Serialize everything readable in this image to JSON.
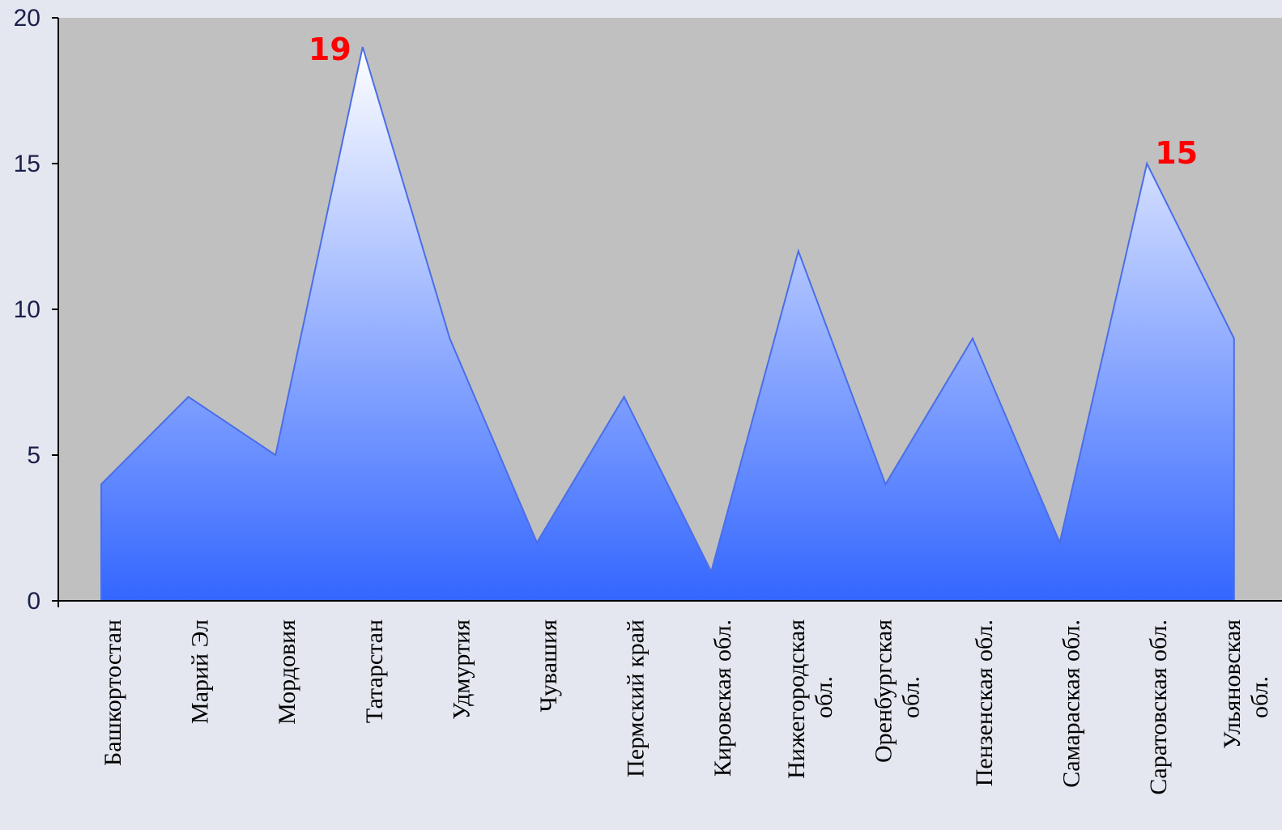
{
  "chart_data": {
    "type": "area",
    "categories": [
      "Башкортостан",
      "Марий Эл",
      "Мордовия",
      "Татарстан",
      "Удмуртия",
      "Чувашия",
      "Пермский край",
      "Кировская обл.",
      "Нижегородская обл.",
      "Оренбургская обл.",
      "Пензенская обл.",
      "Самараская обл.",
      "Саратовская обл.",
      "Ульяновская обл."
    ],
    "category_lines": [
      [
        "Башкортостан"
      ],
      [
        "Марий Эл"
      ],
      [
        "Мордовия"
      ],
      [
        "Татарстан"
      ],
      [
        "Удмуртия"
      ],
      [
        "Чувашия"
      ],
      [
        "Пермский край"
      ],
      [
        "Кировская обл."
      ],
      [
        "Нижегородская",
        "обл."
      ],
      [
        "Оренбургская",
        "обл."
      ],
      [
        "Пензенская обл."
      ],
      [
        "Самараская обл."
      ],
      [
        "Саратовская обл."
      ],
      [
        "Ульяновская",
        "обл."
      ]
    ],
    "values": [
      4,
      7,
      5,
      19,
      9,
      2,
      7,
      1,
      12,
      4,
      9,
      2,
      15,
      9
    ],
    "ylim": [
      0,
      20
    ],
    "yticks": [
      0,
      5,
      10,
      15,
      20
    ],
    "data_labels": [
      {
        "index": 3,
        "text": "19"
      },
      {
        "index": 12,
        "text": "15"
      }
    ],
    "colors": {
      "plot_background": "#c0c0c0",
      "page_background": "#e4e7ef",
      "area_top": "#ffffff",
      "area_bottom": "#3366ff",
      "area_edge": "#4a6ee8",
      "axis": "#000000",
      "data_label": "#ff0000",
      "y_tick_text": "#1b1f4a"
    },
    "grid": false,
    "legend": "none"
  }
}
